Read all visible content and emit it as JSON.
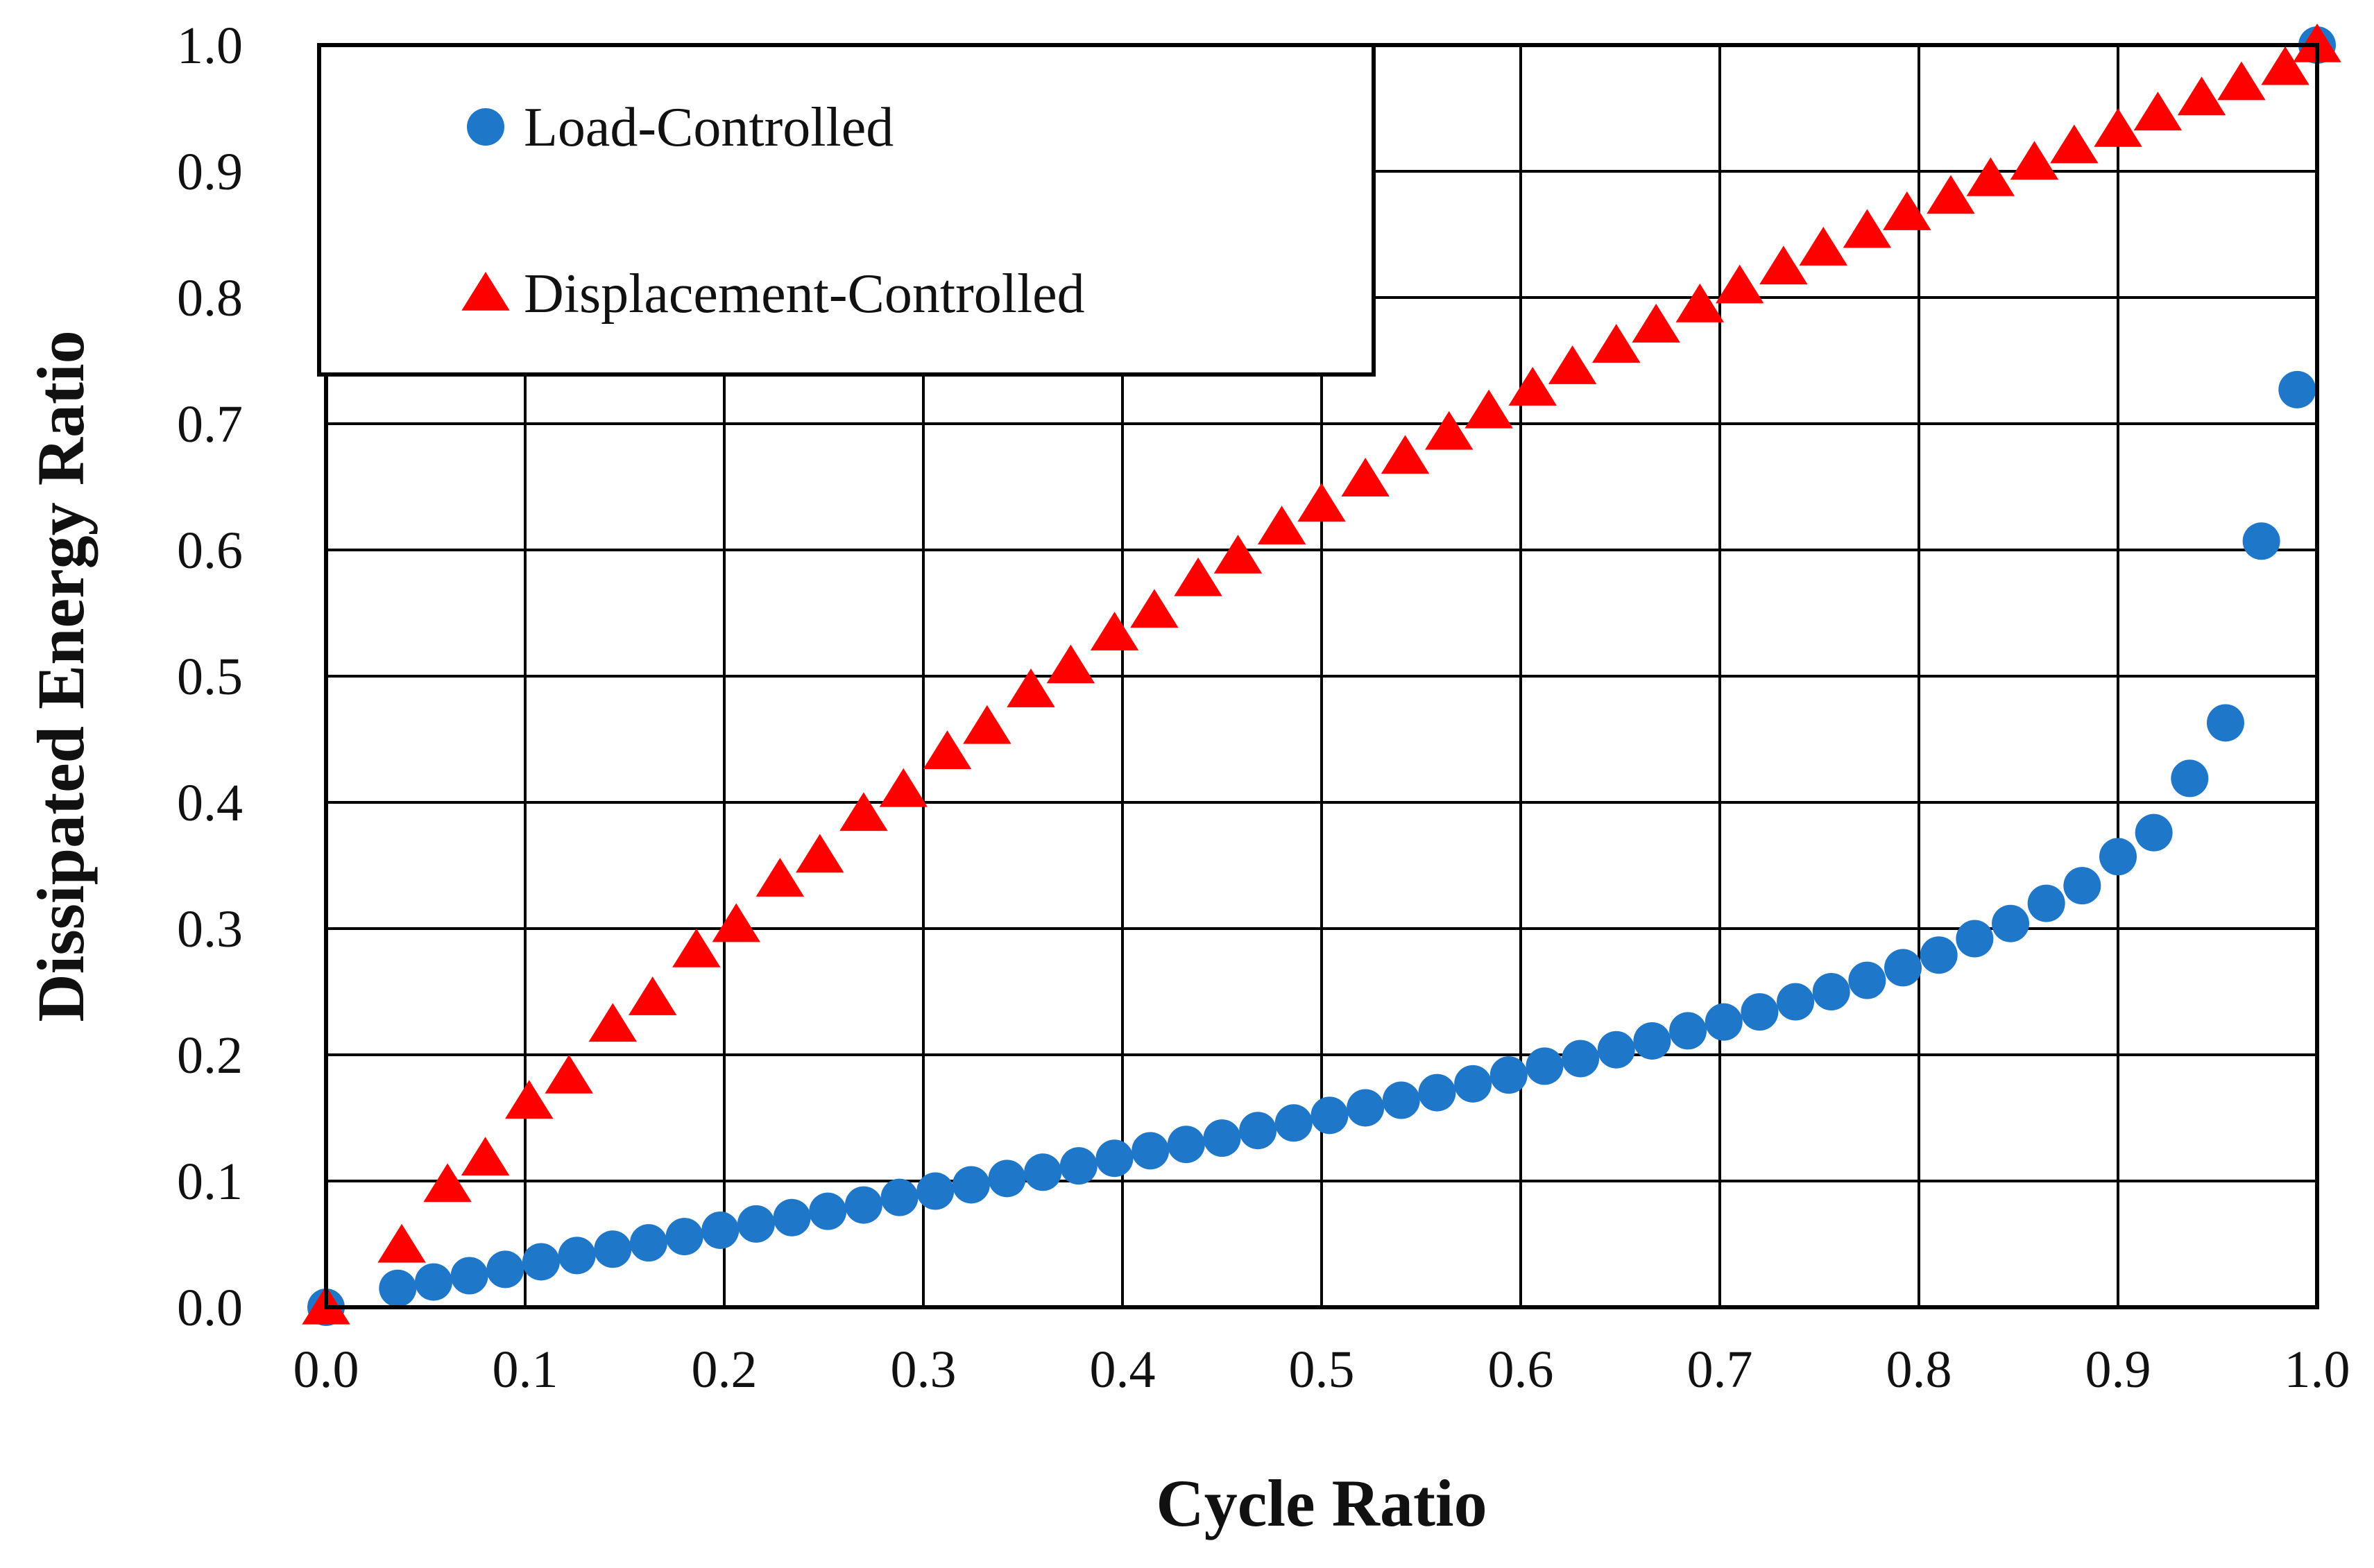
{
  "chart_data": {
    "type": "scatter",
    "title": "",
    "xlabel": "Cycle Ratio",
    "ylabel": "Dissipated Energy Ratio",
    "xlim": [
      0,
      1
    ],
    "ylim": [
      0,
      1
    ],
    "x_ticks": [
      "0.0",
      "0.1",
      "0.2",
      "0.3",
      "0.4",
      "0.5",
      "0.6",
      "0.7",
      "0.8",
      "0.9",
      "1.0"
    ],
    "y_ticks": [
      "0.0",
      "0.1",
      "0.2",
      "0.3",
      "0.4",
      "0.5",
      "0.6",
      "0.7",
      "0.8",
      "0.9",
      "1.0"
    ],
    "grid": true,
    "legend_position": "top-left",
    "series": [
      {
        "name": "Load-Controlled",
        "marker": "circle",
        "color": "#1f77c9",
        "x": [
          0.0,
          0.036,
          0.054,
          0.072,
          0.09,
          0.108,
          0.126,
          0.144,
          0.162,
          0.18,
          0.198,
          0.216,
          0.234,
          0.252,
          0.27,
          0.288,
          0.306,
          0.324,
          0.342,
          0.36,
          0.378,
          0.396,
          0.414,
          0.432,
          0.45,
          0.468,
          0.486,
          0.504,
          0.522,
          0.54,
          0.558,
          0.576,
          0.594,
          0.612,
          0.63,
          0.648,
          0.666,
          0.684,
          0.702,
          0.72,
          0.738,
          0.756,
          0.774,
          0.792,
          0.81,
          0.828,
          0.846,
          0.864,
          0.882,
          0.9,
          0.918,
          0.936,
          0.954,
          0.972,
          0.99,
          1.0
        ],
        "y": [
          0.0,
          0.015,
          0.02,
          0.025,
          0.03,
          0.036,
          0.041,
          0.046,
          0.051,
          0.056,
          0.061,
          0.066,
          0.071,
          0.076,
          0.081,
          0.087,
          0.092,
          0.097,
          0.102,
          0.107,
          0.112,
          0.118,
          0.124,
          0.129,
          0.134,
          0.14,
          0.146,
          0.152,
          0.158,
          0.164,
          0.17,
          0.177,
          0.184,
          0.191,
          0.197,
          0.204,
          0.211,
          0.219,
          0.226,
          0.234,
          0.242,
          0.25,
          0.259,
          0.269,
          0.279,
          0.292,
          0.304,
          0.32,
          0.334,
          0.357,
          0.376,
          0.419,
          0.463,
          0.607,
          0.727,
          1.0
        ]
      },
      {
        "name": "Displacement-Controlled",
        "marker": "triangle",
        "color": "#ff0000",
        "x": [
          0.0,
          0.038,
          0.061,
          0.08,
          0.102,
          0.122,
          0.144,
          0.164,
          0.186,
          0.206,
          0.228,
          0.248,
          0.27,
          0.29,
          0.312,
          0.332,
          0.354,
          0.374,
          0.396,
          0.416,
          0.438,
          0.458,
          0.48,
          0.5,
          0.522,
          0.542,
          0.564,
          0.584,
          0.606,
          0.626,
          0.648,
          0.668,
          0.69,
          0.71,
          0.732,
          0.752,
          0.774,
          0.794,
          0.816,
          0.836,
          0.858,
          0.878,
          0.9,
          0.92,
          0.942,
          0.962,
          0.984,
          1.0
        ],
        "y": [
          0.0,
          0.049,
          0.097,
          0.118,
          0.163,
          0.183,
          0.224,
          0.245,
          0.283,
          0.303,
          0.339,
          0.358,
          0.391,
          0.41,
          0.44,
          0.46,
          0.489,
          0.508,
          0.534,
          0.552,
          0.577,
          0.595,
          0.618,
          0.636,
          0.656,
          0.674,
          0.693,
          0.71,
          0.728,
          0.745,
          0.762,
          0.778,
          0.794,
          0.809,
          0.824,
          0.839,
          0.853,
          0.867,
          0.88,
          0.894,
          0.907,
          0.92,
          0.933,
          0.946,
          0.958,
          0.97,
          0.982,
          1.0
        ]
      }
    ]
  }
}
